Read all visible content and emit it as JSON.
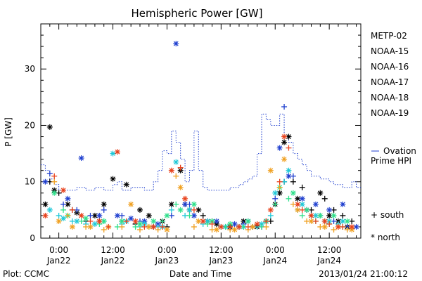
{
  "chart_data": {
    "type": "scatter",
    "title": "Hemispheric Power [GW]",
    "xlabel": "Date and Time",
    "ylabel": "P [GW]",
    "ylim": [
      0,
      38
    ],
    "xlim_hours": [
      -4,
      67
    ],
    "y_ticks": [
      0,
      10,
      20,
      30
    ],
    "x_ticks": [
      {
        "hours": 0,
        "time": "0:00",
        "date": "Jan22"
      },
      {
        "hours": 12,
        "time": "12:00",
        "date": "Jan22"
      },
      {
        "hours": 24,
        "time": "0:00",
        "date": "Jan23"
      },
      {
        "hours": 36,
        "time": "12:00",
        "date": "Jan23"
      },
      {
        "hours": 48,
        "time": "0:00",
        "date": "Jan24"
      },
      {
        "hours": 60,
        "time": "12:00",
        "date": "Jan24"
      }
    ],
    "legend": [
      {
        "name": "METP-02",
        "color": "#000000"
      },
      {
        "name": "NOAA-15",
        "color": "#1f3fcf"
      },
      {
        "name": "NOAA-16",
        "color": "#1fc8d8"
      },
      {
        "name": "NOAA-17",
        "color": "#2ee08a"
      },
      {
        "name": "NOAA-18",
        "color": "#f0a020"
      },
      {
        "name": "NOAA-19",
        "color": "#e8401a"
      }
    ],
    "marker_legend": [
      {
        "symbol": "+",
        "label": "south"
      },
      {
        "symbol": "*",
        "label": "north"
      }
    ],
    "ovation_label_line1": "Ovation",
    "ovation_label_line2": "Prime HPI",
    "ovation_color": "#1f3fcf",
    "ovation_step": [
      [
        -4,
        13
      ],
      [
        -3,
        12
      ],
      [
        -2,
        10.5
      ],
      [
        -1,
        9.5
      ],
      [
        0,
        8.5
      ],
      [
        2,
        8.5
      ],
      [
        4,
        9
      ],
      [
        6,
        8.5
      ],
      [
        8,
        9
      ],
      [
        10,
        8.5
      ],
      [
        12,
        9.5
      ],
      [
        13,
        10
      ],
      [
        14,
        8.5
      ],
      [
        16,
        9
      ],
      [
        19,
        8.5
      ],
      [
        21,
        10
      ],
      [
        22,
        12
      ],
      [
        23,
        15.5
      ],
      [
        24,
        15
      ],
      [
        25,
        19
      ],
      [
        26,
        17
      ],
      [
        27,
        14
      ],
      [
        28,
        10
      ],
      [
        29,
        12
      ],
      [
        30,
        19
      ],
      [
        31,
        12
      ],
      [
        32,
        9
      ],
      [
        33,
        8.5
      ],
      [
        38,
        9
      ],
      [
        40,
        9.5
      ],
      [
        41,
        10
      ],
      [
        42,
        10.5
      ],
      [
        43,
        11
      ],
      [
        44,
        15
      ],
      [
        45,
        22
      ],
      [
        46,
        21
      ],
      [
        47,
        20
      ],
      [
        48,
        20
      ],
      [
        49,
        22
      ],
      [
        50,
        18
      ],
      [
        51,
        17
      ],
      [
        52,
        15
      ],
      [
        53,
        14
      ],
      [
        54,
        13
      ],
      [
        55,
        12
      ],
      [
        56,
        11
      ],
      [
        58,
        10.5
      ],
      [
        60,
        10
      ],
      [
        61,
        9.5
      ],
      [
        63,
        9
      ],
      [
        65,
        10
      ],
      [
        66,
        9
      ]
    ],
    "series": [
      {
        "name": "METP-02",
        "color": "#000000",
        "north": [
          [
            -3,
            6
          ],
          [
            -2,
            19.7
          ],
          [
            -1,
            8.5
          ],
          [
            2,
            6
          ],
          [
            4,
            4.5
          ],
          [
            8,
            4
          ],
          [
            10,
            6
          ],
          [
            12,
            10.5
          ],
          [
            15,
            9.5
          ],
          [
            18,
            5
          ],
          [
            20,
            4
          ],
          [
            23,
            3
          ],
          [
            25,
            6
          ],
          [
            27,
            12
          ],
          [
            29,
            5
          ],
          [
            31,
            5
          ],
          [
            33,
            3
          ],
          [
            35,
            2.5
          ],
          [
            38,
            2
          ],
          [
            41,
            3
          ],
          [
            44,
            2
          ],
          [
            46,
            3
          ],
          [
            48,
            6
          ],
          [
            49,
            8
          ],
          [
            50,
            17
          ],
          [
            51,
            18
          ],
          [
            53,
            7
          ],
          [
            55,
            5
          ],
          [
            58,
            8
          ],
          [
            60,
            4
          ],
          [
            62,
            3
          ],
          [
            64,
            2
          ]
        ],
        "south": [
          [
            -2,
            10
          ],
          [
            0,
            8
          ],
          [
            3,
            5
          ],
          [
            6,
            3
          ],
          [
            9,
            3
          ],
          [
            14,
            3
          ],
          [
            17,
            2.5
          ],
          [
            21,
            2
          ],
          [
            24,
            2
          ],
          [
            28,
            6
          ],
          [
            32,
            4
          ],
          [
            34,
            3
          ],
          [
            37,
            2
          ],
          [
            40,
            2
          ],
          [
            43,
            2
          ],
          [
            47,
            3
          ],
          [
            50,
            10
          ],
          [
            52,
            10
          ],
          [
            54,
            9
          ],
          [
            56,
            5
          ],
          [
            59,
            7
          ],
          [
            61,
            5
          ],
          [
            63,
            4
          ],
          [
            65,
            3
          ]
        ]
      },
      {
        "name": "NOAA-15",
        "color": "#1f3fcf",
        "north": [
          [
            -3,
            10
          ],
          [
            2,
            7
          ],
          [
            5,
            14.2
          ],
          [
            9,
            4
          ],
          [
            13,
            4
          ],
          [
            16,
            3.5
          ],
          [
            19,
            3
          ],
          [
            22,
            2.5
          ],
          [
            26,
            34.5
          ],
          [
            28,
            6
          ],
          [
            30,
            4
          ],
          [
            35,
            3
          ],
          [
            39,
            2.5
          ],
          [
            42,
            3
          ],
          [
            46,
            3
          ],
          [
            49,
            16
          ],
          [
            51,
            11
          ],
          [
            54,
            7
          ],
          [
            57,
            6
          ],
          [
            60,
            5
          ],
          [
            63,
            6
          ],
          [
            66,
            2
          ]
        ],
        "south": [
          [
            -2,
            11.5
          ],
          [
            1,
            6
          ],
          [
            4,
            5
          ],
          [
            7,
            4
          ],
          [
            10,
            5
          ],
          [
            14,
            4
          ],
          [
            18,
            3
          ],
          [
            22,
            2
          ],
          [
            25,
            4
          ],
          [
            29,
            6
          ],
          [
            33,
            3
          ],
          [
            37,
            2
          ],
          [
            41,
            2.5
          ],
          [
            45,
            2
          ],
          [
            48,
            7
          ],
          [
            50,
            23.3
          ],
          [
            52,
            11
          ],
          [
            55,
            5
          ],
          [
            58,
            4
          ],
          [
            61,
            3
          ],
          [
            64,
            2
          ]
        ]
      },
      {
        "name": "NOAA-16",
        "color": "#1fc8d8",
        "north": [
          [
            -2,
            5
          ],
          [
            1,
            3.5
          ],
          [
            4,
            3
          ],
          [
            8,
            2.5
          ],
          [
            12,
            15
          ],
          [
            15,
            3
          ],
          [
            19,
            2.5
          ],
          [
            23,
            2
          ],
          [
            26,
            13.5
          ],
          [
            29,
            5
          ],
          [
            33,
            3
          ],
          [
            37,
            2
          ],
          [
            41,
            2
          ],
          [
            45,
            2.5
          ],
          [
            48,
            8
          ],
          [
            51,
            12
          ],
          [
            54,
            6
          ],
          [
            57,
            4
          ],
          [
            60,
            3
          ],
          [
            63,
            3
          ]
        ],
        "south": [
          [
            0,
            4
          ],
          [
            3,
            3
          ],
          [
            6,
            2.5
          ],
          [
            10,
            3
          ],
          [
            14,
            2.5
          ],
          [
            18,
            2
          ],
          [
            22,
            2
          ],
          [
            25,
            5
          ],
          [
            28,
            4
          ],
          [
            32,
            2.5
          ],
          [
            36,
            2
          ],
          [
            40,
            2
          ],
          [
            44,
            2
          ],
          [
            47,
            4
          ],
          [
            50,
            10
          ],
          [
            53,
            5
          ],
          [
            56,
            4
          ],
          [
            59,
            3
          ],
          [
            62,
            2.5
          ]
        ]
      },
      {
        "name": "NOAA-17",
        "color": "#2ee08a",
        "north": [
          [
            -1,
            8
          ],
          [
            2,
            4
          ],
          [
            6,
            3.5
          ],
          [
            10,
            3
          ],
          [
            14,
            3
          ],
          [
            18,
            2.5
          ],
          [
            21,
            3
          ],
          [
            24,
            4
          ],
          [
            27,
            5
          ],
          [
            30,
            6
          ],
          [
            34,
            3
          ],
          [
            38,
            2.5
          ],
          [
            42,
            3
          ],
          [
            46,
            3
          ],
          [
            49,
            9
          ],
          [
            52,
            8
          ],
          [
            55,
            5
          ],
          [
            58,
            4
          ],
          [
            61,
            4
          ],
          [
            64,
            3
          ]
        ],
        "south": [
          [
            1,
            5
          ],
          [
            5,
            3
          ],
          [
            9,
            2.5
          ],
          [
            13,
            2
          ],
          [
            17,
            2
          ],
          [
            20,
            2
          ],
          [
            23,
            3
          ],
          [
            26,
            6
          ],
          [
            29,
            4
          ],
          [
            33,
            2.5
          ],
          [
            37,
            2
          ],
          [
            41,
            2
          ],
          [
            45,
            2
          ],
          [
            48,
            6
          ],
          [
            51,
            7
          ],
          [
            54,
            4
          ],
          [
            57,
            3
          ],
          [
            60,
            2.5
          ],
          [
            63,
            2
          ]
        ]
      },
      {
        "name": "NOAA-18",
        "color": "#f0a020",
        "north": [
          [
            0,
            3
          ],
          [
            3,
            2
          ],
          [
            7,
            2
          ],
          [
            11,
            2
          ],
          [
            16,
            6
          ],
          [
            20,
            2
          ],
          [
            24,
            1.5
          ],
          [
            27,
            9
          ],
          [
            31,
            3
          ],
          [
            35,
            1.5
          ],
          [
            39,
            1.5
          ],
          [
            43,
            2
          ],
          [
            47,
            12
          ],
          [
            50,
            14
          ],
          [
            53,
            5
          ],
          [
            56,
            3
          ],
          [
            59,
            2
          ],
          [
            62,
            2
          ],
          [
            65,
            1.5
          ]
        ],
        "south": [
          [
            -1,
            10
          ],
          [
            2,
            4
          ],
          [
            6,
            2
          ],
          [
            10,
            1.5
          ],
          [
            14,
            2
          ],
          [
            18,
            1.5
          ],
          [
            22,
            1.5
          ],
          [
            26,
            11
          ],
          [
            30,
            2
          ],
          [
            34,
            1.5
          ],
          [
            38,
            1.5
          ],
          [
            42,
            1.5
          ],
          [
            46,
            2
          ],
          [
            49,
            9
          ],
          [
            52,
            6
          ],
          [
            55,
            3
          ],
          [
            58,
            2
          ],
          [
            61,
            1.5
          ],
          [
            64,
            1.5
          ]
        ]
      },
      {
        "name": "NOAA-19",
        "color": "#e8401a",
        "north": [
          [
            -3,
            4
          ],
          [
            1,
            8.5
          ],
          [
            5,
            4
          ],
          [
            9,
            3
          ],
          [
            13,
            15.3
          ],
          [
            17,
            3
          ],
          [
            21,
            2
          ],
          [
            25,
            12
          ],
          [
            28,
            7
          ],
          [
            32,
            3
          ],
          [
            36,
            2
          ],
          [
            40,
            2
          ],
          [
            44,
            2.5
          ],
          [
            47,
            5
          ],
          [
            50,
            18
          ],
          [
            53,
            6
          ],
          [
            56,
            4
          ],
          [
            59,
            3
          ],
          [
            62,
            2
          ],
          [
            65,
            2
          ]
        ],
        "south": [
          [
            -1,
            11
          ],
          [
            3,
            5
          ],
          [
            7,
            3
          ],
          [
            11,
            2
          ],
          [
            15,
            3
          ],
          [
            19,
            2
          ],
          [
            23,
            2
          ],
          [
            27,
            12.5
          ],
          [
            30,
            5
          ],
          [
            34,
            2.5
          ],
          [
            38,
            2
          ],
          [
            42,
            2
          ],
          [
            46,
            3
          ],
          [
            49,
            10
          ],
          [
            51,
            16
          ],
          [
            54,
            5
          ],
          [
            57,
            3
          ],
          [
            60,
            2.5
          ],
          [
            63,
            2
          ]
        ]
      }
    ]
  },
  "footer": {
    "plot_credit": "Plot: CCMC",
    "timestamp": "2013/01/24 21:00:12"
  }
}
